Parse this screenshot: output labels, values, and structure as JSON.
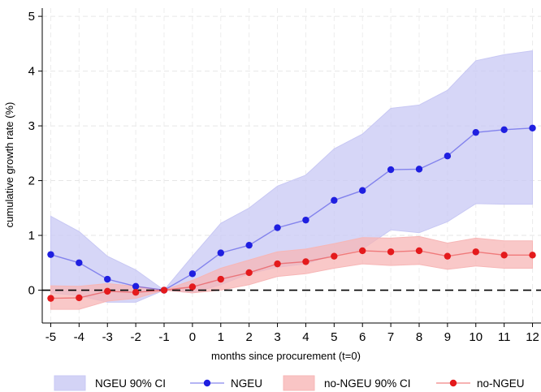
{
  "chart_data": {
    "type": "line",
    "xlabel": "months since procurement (t=0)",
    "ylabel": "cumulative growth rate (%)",
    "x": [
      -5,
      -4,
      -3,
      -2,
      -1,
      0,
      1,
      2,
      3,
      4,
      5,
      6,
      7,
      8,
      9,
      10,
      11,
      12
    ],
    "xlim": [
      -5.3,
      12.3
    ],
    "ylim": [
      -0.6,
      5.15
    ],
    "xticks": [
      -5,
      -4,
      -3,
      -2,
      -1,
      0,
      1,
      2,
      3,
      4,
      5,
      6,
      7,
      8,
      9,
      10,
      11,
      12
    ],
    "yticks": [
      0,
      1,
      2,
      3,
      4,
      5
    ],
    "grid": true,
    "reference_line_y": 0,
    "legend_position": "bottom",
    "series": [
      {
        "name": "NGEU",
        "ci_name": "NGEU 90% CI",
        "color": "#1f1fe0",
        "band_color": "#c8c8f4",
        "values": [
          0.65,
          0.5,
          0.2,
          0.07,
          0.0,
          0.3,
          0.68,
          0.82,
          1.14,
          1.28,
          1.64,
          1.82,
          2.2,
          2.21,
          2.45,
          2.88,
          2.93,
          2.96
        ],
        "ci_lower": [
          -0.05,
          -0.1,
          -0.22,
          -0.22,
          0.0,
          -0.05,
          0.1,
          0.3,
          0.42,
          0.48,
          0.65,
          0.75,
          1.1,
          1.05,
          1.25,
          1.58,
          1.57,
          1.57
        ],
        "ci_upper": [
          1.35,
          1.07,
          0.62,
          0.37,
          0.0,
          0.62,
          1.22,
          1.5,
          1.9,
          2.1,
          2.58,
          2.85,
          3.32,
          3.38,
          3.65,
          4.19,
          4.3,
          4.37
        ]
      },
      {
        "name": "no-NGEU",
        "ci_name": "no-NGEU 90% CI",
        "color": "#e41a1c",
        "band_color": "#f7b6b6",
        "values": [
          -0.15,
          -0.14,
          -0.02,
          -0.04,
          0.0,
          0.06,
          0.2,
          0.32,
          0.48,
          0.52,
          0.62,
          0.72,
          0.7,
          0.72,
          0.62,
          0.7,
          0.64,
          0.64
        ],
        "ci_lower": [
          -0.35,
          -0.35,
          -0.2,
          -0.15,
          0.0,
          -0.05,
          0.0,
          0.1,
          0.25,
          0.3,
          0.4,
          0.48,
          0.45,
          0.47,
          0.38,
          0.44,
          0.4,
          0.4
        ],
        "ci_upper": [
          0.08,
          0.07,
          0.12,
          0.07,
          0.0,
          0.18,
          0.4,
          0.55,
          0.7,
          0.75,
          0.85,
          0.96,
          0.95,
          0.98,
          0.86,
          0.95,
          0.9,
          0.9
        ]
      }
    ]
  },
  "legend": {
    "items": [
      {
        "label": "NGEU 90% CI",
        "kind": "band",
        "series": 0
      },
      {
        "label": "NGEU",
        "kind": "line",
        "series": 0
      },
      {
        "label": "no-NGEU 90% CI",
        "kind": "band",
        "series": 1
      },
      {
        "label": "no-NGEU",
        "kind": "line",
        "series": 1
      }
    ]
  }
}
